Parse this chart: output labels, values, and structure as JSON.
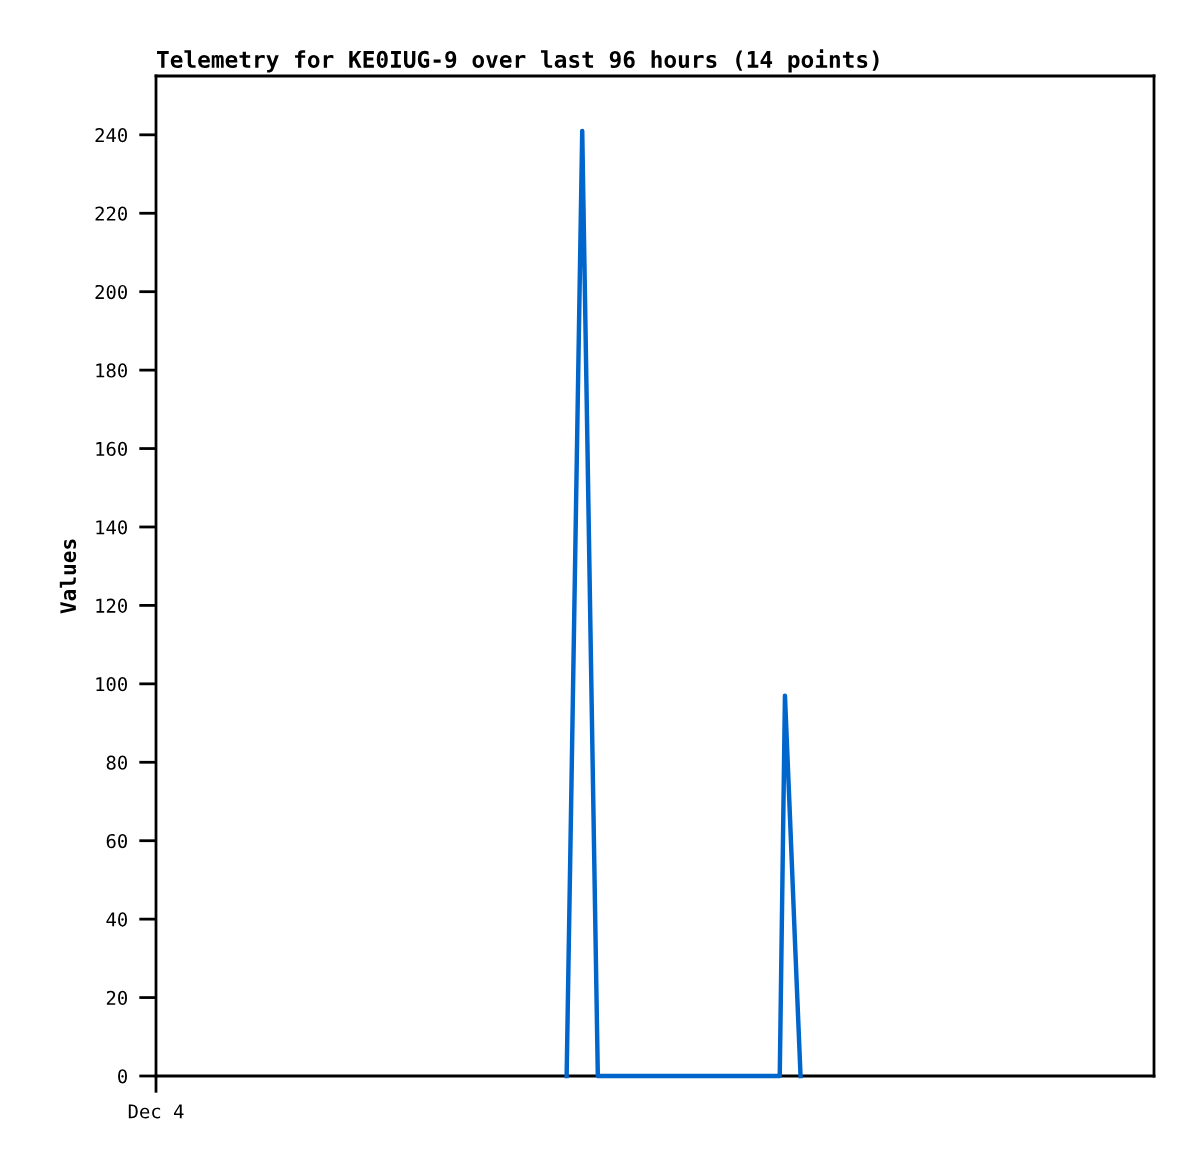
{
  "chart_data": {
    "type": "line",
    "title": "Telemetry for KE0IUG-9 over last 96 hours (14 points)",
    "ylabel": "Values",
    "categories": [
      "Dec 4",
      null,
      null,
      null,
      null,
      null,
      null,
      null,
      null,
      null,
      null,
      null,
      null,
      null,
      null,
      null,
      null,
      null,
      null,
      null,
      null,
      null,
      null,
      null,
      null,
      null,
      null,
      null,
      null,
      null,
      null,
      null,
      null,
      null,
      null,
      null,
      null,
      null,
      null,
      null,
      null,
      null,
      null,
      null,
      null,
      null,
      null,
      null,
      null,
      null,
      null,
      null,
      null,
      null,
      null,
      null,
      null,
      null,
      null,
      null,
      null,
      null,
      null,
      null,
      null,
      null,
      null,
      null,
      null,
      null,
      null,
      null,
      null,
      null,
      null,
      null,
      null,
      null,
      null,
      null,
      null,
      null,
      null,
      null,
      null,
      null,
      null,
      null,
      null,
      null,
      null,
      null,
      null,
      null,
      null,
      null,
      null,
      null,
      null,
      null,
      null,
      null,
      null,
      null,
      null,
      null,
      null,
      null,
      null,
      null,
      null,
      null,
      null,
      null,
      null,
      null,
      null,
      null,
      null,
      null,
      null,
      null,
      null,
      null,
      null,
      null,
      null,
      null,
      null,
      null,
      null,
      null,
      null,
      null,
      null,
      null,
      null,
      null,
      null,
      null,
      null,
      null,
      null,
      null,
      null,
      null,
      null,
      null,
      null,
      null,
      null,
      null,
      null,
      null,
      null,
      null,
      null,
      null,
      null,
      null,
      null,
      null,
      null,
      null,
      null,
      null,
      null,
      null,
      null,
      null,
      null,
      null,
      null,
      null,
      null,
      null,
      null,
      null,
      null,
      null,
      null,
      null,
      null,
      null,
      null,
      null,
      null,
      null,
      null,
      null,
      null,
      null,
      null
    ],
    "series": [
      {
        "color": "#0066cc",
        "values": [
          null,
          null,
          null,
          null,
          null,
          null,
          null,
          null,
          null,
          null,
          null,
          null,
          null,
          null,
          null,
          null,
          null,
          null,
          null,
          null,
          null,
          null,
          null,
          null,
          null,
          null,
          null,
          null,
          null,
          null,
          null,
          null,
          null,
          null,
          null,
          null,
          null,
          null,
          null,
          null,
          null,
          null,
          null,
          null,
          null,
          null,
          null,
          null,
          null,
          null,
          null,
          null,
          null,
          null,
          null,
          null,
          null,
          null,
          null,
          null,
          null,
          null,
          null,
          null,
          null,
          null,
          null,
          null,
          null,
          null,
          null,
          null,
          null,
          null,
          null,
          null,
          null,
          null,
          null,
          0,
          80,
          161,
          241,
          161,
          80,
          0,
          0,
          0,
          0,
          0,
          0,
          0,
          0,
          0,
          0,
          0,
          0,
          0,
          0,
          0,
          0,
          0,
          0,
          0,
          0,
          0,
          0,
          0,
          0,
          0,
          0,
          0,
          0,
          0,
          0,
          0,
          0,
          0,
          0,
          0,
          0,
          97,
          65,
          32,
          0,
          null,
          null,
          null,
          null,
          null,
          null,
          null,
          null,
          null,
          null,
          null,
          null,
          null,
          null,
          null,
          null,
          null,
          null,
          null,
          null,
          null,
          null,
          null,
          null,
          null,
          null,
          null,
          null,
          null,
          null,
          null,
          null,
          null,
          null,
          null,
          null,
          null,
          null,
          null,
          null,
          null,
          null,
          null,
          null,
          null,
          null,
          null,
          null,
          null,
          null,
          null,
          null,
          null,
          null,
          null,
          null,
          null,
          null,
          null,
          null,
          null,
          null,
          null,
          null,
          null,
          null,
          null,
          null
        ]
      }
    ],
    "ylim": [
      0,
      255
    ],
    "yticks": [
      0,
      20,
      40,
      60,
      80,
      100,
      120,
      140,
      160,
      180,
      200,
      220,
      240
    ],
    "grid": false,
    "marker": "none",
    "line_style": "solid"
  }
}
